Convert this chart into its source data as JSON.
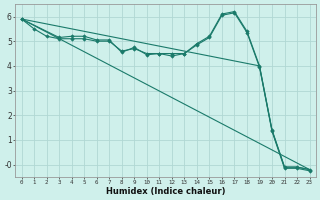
{
  "xlabel": "Humidex (Indice chaleur)",
  "bg_color": "#cff0eb",
  "grid_color": "#b0d8d4",
  "line_color": "#1a7a6a",
  "xlim": [
    -0.5,
    23.5
  ],
  "ylim": [
    -0.5,
    6.5
  ],
  "xticks": [
    0,
    1,
    2,
    3,
    4,
    5,
    6,
    7,
    8,
    9,
    10,
    11,
    12,
    13,
    14,
    15,
    16,
    17,
    18,
    19,
    20,
    21,
    22,
    23
  ],
  "yticks": [
    0,
    1,
    2,
    3,
    4,
    5,
    6
  ],
  "ytick_labels": [
    "-0",
    "1",
    "2",
    "3",
    "4",
    "5",
    "6"
  ],
  "series": [
    {
      "x": [
        0,
        1,
        2,
        3,
        4,
        5,
        6,
        7,
        8,
        9,
        10,
        11,
        12,
        13,
        14,
        15,
        16,
        17,
        18,
        19,
        20,
        21,
        22,
        23
      ],
      "y": [
        5.9,
        5.5,
        5.2,
        5.1,
        5.1,
        5.1,
        5.0,
        5.0,
        4.6,
        4.7,
        4.5,
        4.5,
        4.5,
        4.5,
        4.9,
        5.2,
        6.1,
        6.2,
        5.4,
        4.0,
        1.4,
        -0.1,
        -0.1,
        -0.2
      ],
      "marker": "D",
      "markersize": 1.8,
      "linewidth": 0.8
    },
    {
      "x": [
        0,
        3,
        4,
        5,
        6,
        7,
        8,
        9,
        10,
        11,
        12,
        13,
        14,
        15,
        16,
        17,
        18,
        19,
        20,
        21,
        22,
        23
      ],
      "y": [
        5.9,
        5.15,
        5.2,
        5.2,
        5.05,
        5.05,
        4.55,
        4.75,
        4.45,
        4.5,
        4.4,
        4.5,
        4.85,
        5.15,
        6.05,
        6.15,
        5.35,
        3.95,
        1.35,
        -0.15,
        -0.15,
        -0.25
      ],
      "marker": "D",
      "markersize": 1.8,
      "linewidth": 0.8
    },
    {
      "x": [
        0,
        23
      ],
      "y": [
        5.9,
        -0.2
      ],
      "marker": null,
      "markersize": 0,
      "linewidth": 0.8
    },
    {
      "x": [
        0,
        19,
        20,
        21,
        22,
        23
      ],
      "y": [
        5.9,
        4.0,
        1.4,
        -0.1,
        -0.1,
        -0.2
      ],
      "marker": null,
      "markersize": 0,
      "linewidth": 0.8
    }
  ]
}
